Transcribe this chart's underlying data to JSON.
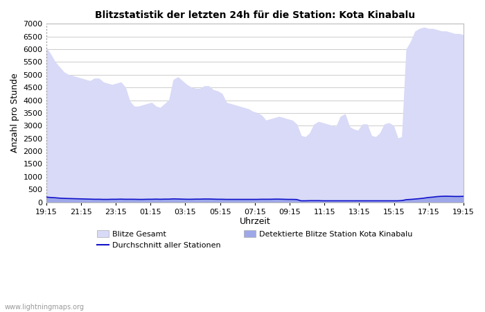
{
  "title": "Blitzstatistik der letzten 24h für die Station: Kota Kinabalu",
  "xlabel": "Uhrzeit",
  "ylabel": "Anzahl pro Stunde",
  "ylim": [
    0,
    7000
  ],
  "yticks": [
    0,
    500,
    1000,
    1500,
    2000,
    2500,
    3000,
    3500,
    4000,
    4500,
    5000,
    5500,
    6000,
    6500,
    7000
  ],
  "xtick_labels": [
    "19:15",
    "21:15",
    "23:15",
    "01:15",
    "03:15",
    "05:15",
    "07:15",
    "09:15",
    "11:15",
    "13:15",
    "15:15",
    "17:15",
    "19:15"
  ],
  "background_color": "#ffffff",
  "plot_bg_color": "#ffffff",
  "grid_color": "#cccccc",
  "fill_gesamt_color": "#d8daf7",
  "fill_station_color": "#9ea8e8",
  "line_avg_color": "#1111cc",
  "watermark": "www.lightningmaps.org",
  "legend": {
    "blitze_gesamt": "Blitze Gesamt",
    "detektierte": "Detektierte Blitze Station Kota Kinabalu",
    "durchschnitt": "Durchschnitt aller Stationen"
  },
  "gesamt_x": [
    0,
    1,
    2,
    3,
    4,
    5,
    6,
    7,
    8,
    9,
    10,
    11,
    12,
    13,
    14,
    15,
    16,
    17,
    18,
    19,
    20,
    21,
    22,
    23,
    24,
    25,
    26,
    27,
    28,
    29,
    30,
    31,
    32,
    33,
    34,
    35,
    36,
    37,
    38,
    39,
    40,
    41,
    42,
    43,
    44,
    45,
    46,
    47,
    48,
    49,
    50,
    51,
    52,
    53,
    54,
    55,
    56,
    57,
    58,
    59,
    60,
    61,
    62,
    63,
    64,
    65,
    66,
    67,
    68,
    69,
    70,
    71,
    72,
    73,
    74,
    75,
    76,
    77,
    78,
    79,
    80,
    81,
    82,
    83,
    84,
    85,
    86,
    87,
    88,
    89,
    90,
    91,
    92,
    93,
    94,
    95
  ],
  "gesamt_values": [
    6050,
    5800,
    5500,
    5300,
    5100,
    5000,
    4950,
    4900,
    4850,
    4800,
    4750,
    4850,
    4850,
    4700,
    4650,
    4600,
    4650,
    4700,
    4500,
    3950,
    3750,
    3750,
    3800,
    3850,
    3900,
    3750,
    3700,
    3850,
    4000,
    4800,
    4900,
    4750,
    4600,
    4500,
    4450,
    4450,
    4550,
    4550,
    4400,
    4350,
    4250,
    3900,
    3850,
    3800,
    3750,
    3700,
    3650,
    3550,
    3500,
    3400,
    3200,
    3250,
    3300,
    3350,
    3300,
    3250,
    3200,
    3050,
    2600,
    2550,
    2700,
    3050,
    3150,
    3100,
    3050,
    3000,
    2950,
    3350,
    3450,
    2950,
    2850,
    2800,
    3050,
    3050,
    2600,
    2550,
    2700,
    3050,
    3100,
    3000,
    2500,
    2550,
    6000,
    6300,
    6700,
    6800,
    6850,
    6800,
    6800,
    6750,
    6700,
    6700,
    6650,
    6600,
    6600,
    6550
  ],
  "station_values": [
    200,
    185,
    175,
    160,
    150,
    145,
    140,
    135,
    130,
    125,
    120,
    115,
    115,
    110,
    110,
    115,
    115,
    120,
    115,
    115,
    115,
    110,
    110,
    115,
    115,
    120,
    115,
    120,
    120,
    130,
    125,
    120,
    115,
    115,
    120,
    120,
    125,
    125,
    120,
    115,
    115,
    110,
    110,
    110,
    110,
    110,
    110,
    110,
    110,
    115,
    115,
    115,
    120,
    120,
    115,
    110,
    110,
    105,
    55,
    55,
    60,
    60,
    60,
    55,
    55,
    55,
    55,
    55,
    55,
    55,
    55,
    55,
    55,
    55,
    55,
    55,
    55,
    55,
    55,
    55,
    55,
    65,
    100,
    110,
    125,
    140,
    160,
    185,
    200,
    220,
    230,
    235,
    230,
    225,
    225,
    230
  ],
  "avg_values": [
    200,
    185,
    175,
    160,
    150,
    145,
    140,
    135,
    130,
    125,
    120,
    115,
    115,
    110,
    110,
    115,
    115,
    120,
    115,
    115,
    115,
    110,
    110,
    115,
    115,
    120,
    115,
    120,
    120,
    130,
    125,
    120,
    115,
    115,
    120,
    120,
    125,
    125,
    120,
    115,
    115,
    110,
    110,
    110,
    110,
    110,
    110,
    110,
    110,
    115,
    115,
    115,
    120,
    120,
    115,
    110,
    110,
    105,
    55,
    55,
    60,
    60,
    60,
    55,
    55,
    55,
    55,
    55,
    55,
    55,
    55,
    55,
    55,
    55,
    55,
    55,
    55,
    55,
    55,
    55,
    55,
    65,
    100,
    110,
    125,
    140,
    160,
    185,
    200,
    220,
    230,
    235,
    230,
    225,
    225,
    230
  ],
  "n_xticks": 13,
  "figsize": [
    7.0,
    4.5
  ],
  "dpi": 100
}
